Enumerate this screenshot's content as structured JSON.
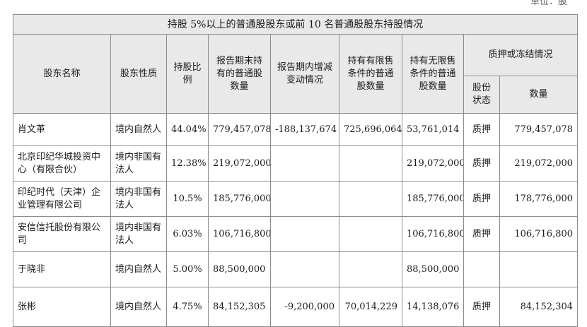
{
  "unit_note": "单位：股",
  "table": {
    "title": "持股 5%以上的普通股股东或前 10 名普通股股东持股情况",
    "headers": {
      "name": "股东名称",
      "nature": "股东性质",
      "ratio": "持股比例",
      "period_end": "报告期末持有的普通股数量",
      "change": "报告期内增减变动情况",
      "restricted": "持有有限售条件的普通股数量",
      "unrestricted": "持有无限售条件的普通股数量",
      "pledge_group": "质押或冻结情况",
      "pledge_status": "股份状态",
      "pledge_amount": "数量"
    },
    "rows": [
      {
        "name": "肖文革",
        "nature": "境内自然人",
        "ratio": "44.04%",
        "period_end": "779,457,078",
        "change": "-188,137,674",
        "restricted": "725,696,064",
        "unrestricted": "53,761,014",
        "pledge_status": "质押",
        "pledge_amount": "779,457,078"
      },
      {
        "name": "北京印纪华城投资中心（有限合伙）",
        "nature": "境内非国有法人",
        "ratio": "12.38%",
        "period_end": "219,072,000",
        "change": "",
        "restricted": "",
        "unrestricted": "219,072,000",
        "pledge_status": "质押",
        "pledge_amount": "219,072,000"
      },
      {
        "name": "印纪时代（天津）企业管理有限公司",
        "nature": "境内非国有法人",
        "ratio": "10.5%",
        "period_end": "185,776,000",
        "change": "",
        "restricted": "",
        "unrestricted": "185,776,000",
        "pledge_status": "质押",
        "pledge_amount": "178,776,000"
      },
      {
        "name": "安信信托股份有限公司",
        "nature": "境内非国有法人",
        "ratio": "6.03%",
        "period_end": "106,716,800",
        "change": "",
        "restricted": "",
        "unrestricted": "106,716,800",
        "pledge_status": "质押",
        "pledge_amount": "106,716,800"
      },
      {
        "name": "于晓非",
        "nature": "境内自然人",
        "ratio": "5.00%",
        "period_end": "88,500,000",
        "change": "",
        "restricted": "",
        "unrestricted": "88,500,000",
        "pledge_status": "",
        "pledge_amount": ""
      },
      {
        "name": "张彬",
        "nature": "境内自然人",
        "ratio": "4.75%",
        "period_end": "84,152,305",
        "change": "-9,200,000",
        "restricted": "70,014,229",
        "unrestricted": "14,138,076",
        "pledge_status": "质押",
        "pledge_amount": "84,152,304"
      }
    ]
  }
}
